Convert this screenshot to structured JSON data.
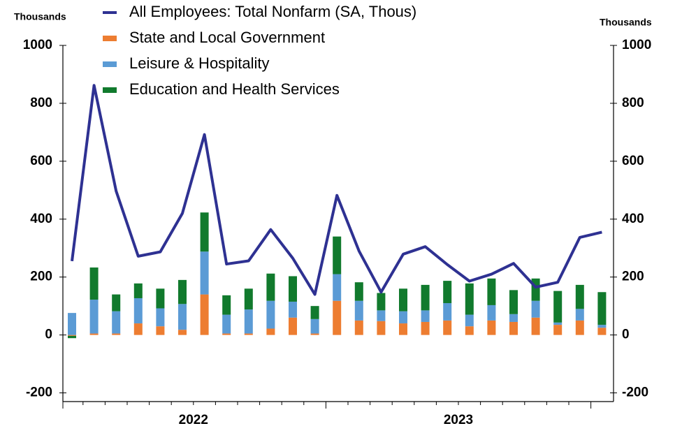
{
  "chart_data": {
    "type": "bar-line",
    "y_label": "Thousands",
    "y2_label": "Thousands",
    "categories": [
      null,
      null,
      null,
      null,
      null,
      null,
      null,
      null,
      null,
      null,
      null,
      null,
      null,
      null,
      null,
      null,
      null,
      null,
      null,
      null,
      null,
      null,
      null,
      null,
      null
    ],
    "year_labels": [
      "2022",
      "2023"
    ],
    "series": [
      {
        "name": "All Employees: Total Nonfarm (SA, Thous)",
        "type": "line",
        "axis": "y2",
        "color": "#2e3192",
        "values": [
          255,
          862,
          497,
          272,
          287,
          420,
          692,
          245,
          256,
          364,
          265,
          140,
          482,
          290,
          148,
          279,
          305,
          243,
          186,
          210,
          247,
          165,
          182,
          337,
          355
        ]
      },
      {
        "name": "State and Local Government",
        "type": "bar",
        "color": "#ed7d31",
        "values": [
          -3,
          5,
          5,
          40,
          30,
          18,
          140,
          5,
          5,
          22,
          60,
          5,
          118,
          50,
          48,
          40,
          45,
          50,
          30,
          50,
          45,
          60,
          35,
          50,
          25
        ]
      },
      {
        "name": "Leisure & Hospitality",
        "type": "bar",
        "color": "#5b9bd5",
        "values": [
          76,
          117,
          77,
          87,
          62,
          89,
          148,
          65,
          83,
          96,
          55,
          50,
          92,
          68,
          37,
          42,
          40,
          60,
          40,
          53,
          27,
          58,
          8,
          40,
          10
        ]
      },
      {
        "name": "Education and Health Services",
        "type": "bar",
        "color": "#117a2d",
        "values": [
          -8,
          111,
          58,
          51,
          68,
          83,
          135,
          67,
          72,
          94,
          88,
          45,
          130,
          64,
          60,
          78,
          88,
          77,
          108,
          92,
          83,
          77,
          109,
          83,
          113
        ]
      }
    ],
    "ylim": [
      -230,
      1000
    ],
    "yticks": [
      -200,
      0,
      200,
      400,
      600,
      800,
      1000
    ],
    "y2lim": [
      -230,
      1000
    ],
    "y2ticks": [
      -200,
      0,
      200,
      400,
      600,
      800,
      1000
    ]
  }
}
